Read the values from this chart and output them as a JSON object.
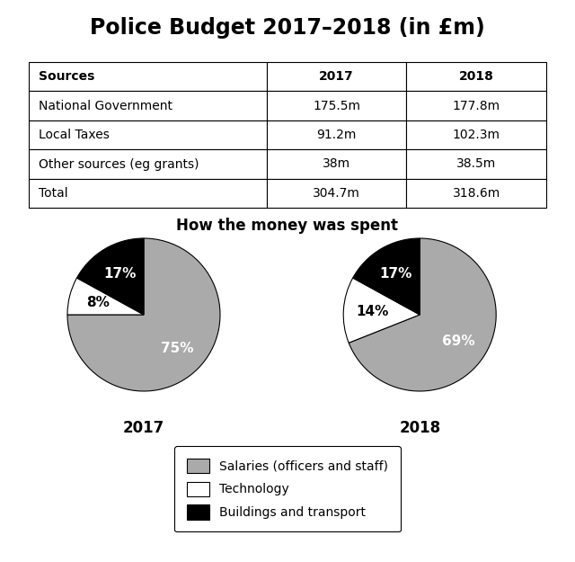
{
  "title": "Police Budget 2017–2018 (in £m)",
  "table": {
    "headers": [
      "Sources",
      "2017",
      "2018"
    ],
    "rows": [
      [
        "National Government",
        "175.5m",
        "177.8m"
      ],
      [
        "Local Taxes",
        "91.2m",
        "102.3m"
      ],
      [
        "Other sources (eg grants)",
        "38m",
        "38.5m"
      ],
      [
        "Total",
        "304.7m",
        "318.6m"
      ]
    ]
  },
  "pie_title": "How the money was spent",
  "pie_2017": {
    "label": "2017",
    "values": [
      75,
      8,
      17
    ],
    "pct_labels": [
      "75%",
      "8%",
      "17%"
    ],
    "colors": [
      "#aaaaaa",
      "#ffffff",
      "#000000"
    ],
    "startangle": 90
  },
  "pie_2018": {
    "label": "2018",
    "values": [
      69,
      14,
      17
    ],
    "pct_labels": [
      "69%",
      "14%",
      "17%"
    ],
    "colors": [
      "#aaaaaa",
      "#ffffff",
      "#000000"
    ],
    "startangle": 90
  },
  "legend_labels": [
    "Salaries (officers and staff)",
    "Technology",
    "Buildings and transport"
  ],
  "legend_colors": [
    "#aaaaaa",
    "#ffffff",
    "#000000"
  ],
  "background_color": "#ffffff",
  "title_fontsize": 17,
  "table_fontsize": 10,
  "pie_title_fontsize": 12,
  "pie_label_fontsize": 11,
  "pie_year_fontsize": 12,
  "legend_fontsize": 10
}
